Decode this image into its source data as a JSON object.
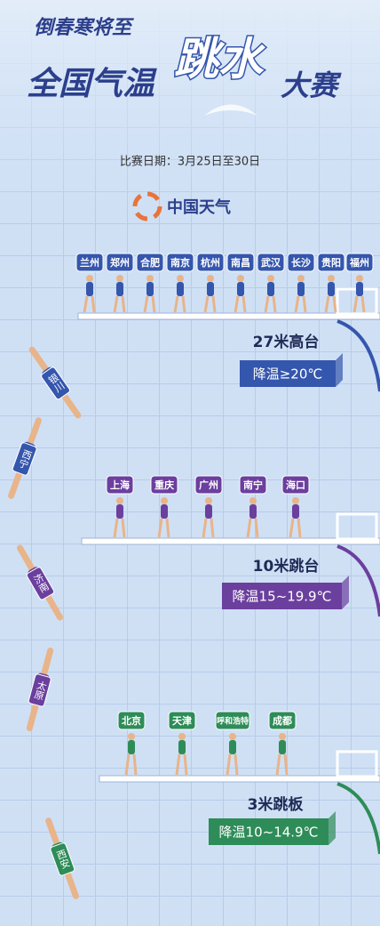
{
  "header": {
    "tagline": "倒春寒将至",
    "title_parts": [
      "全国气温",
      "跳水",
      "大赛"
    ],
    "date": "比赛日期：3月25日至30日",
    "brand": "中国天气"
  },
  "platforms": [
    {
      "name": "27米高台",
      "range": "降温≥20℃",
      "color": "#3556ad",
      "cities": [
        "兰州",
        "郑州",
        "合肥",
        "南京",
        "杭州",
        "南昌",
        "武汉",
        "长沙",
        "贵阳",
        "福州"
      ],
      "divers": [
        "银川",
        "西宁"
      ]
    },
    {
      "name": "10米跳台",
      "range": "降温15~19.9℃",
      "color": "#6b3f9e",
      "cities": [
        "上海",
        "重庆",
        "广州",
        "南宁",
        "海口"
      ],
      "divers": [
        "济南",
        "太原"
      ]
    },
    {
      "name": "3米跳板",
      "range": "降温10~14.9℃",
      "color": "#2e8c58",
      "cities": [
        "北京",
        "天津",
        "呼和浩特",
        "成都"
      ],
      "divers": [
        "西安"
      ]
    }
  ]
}
